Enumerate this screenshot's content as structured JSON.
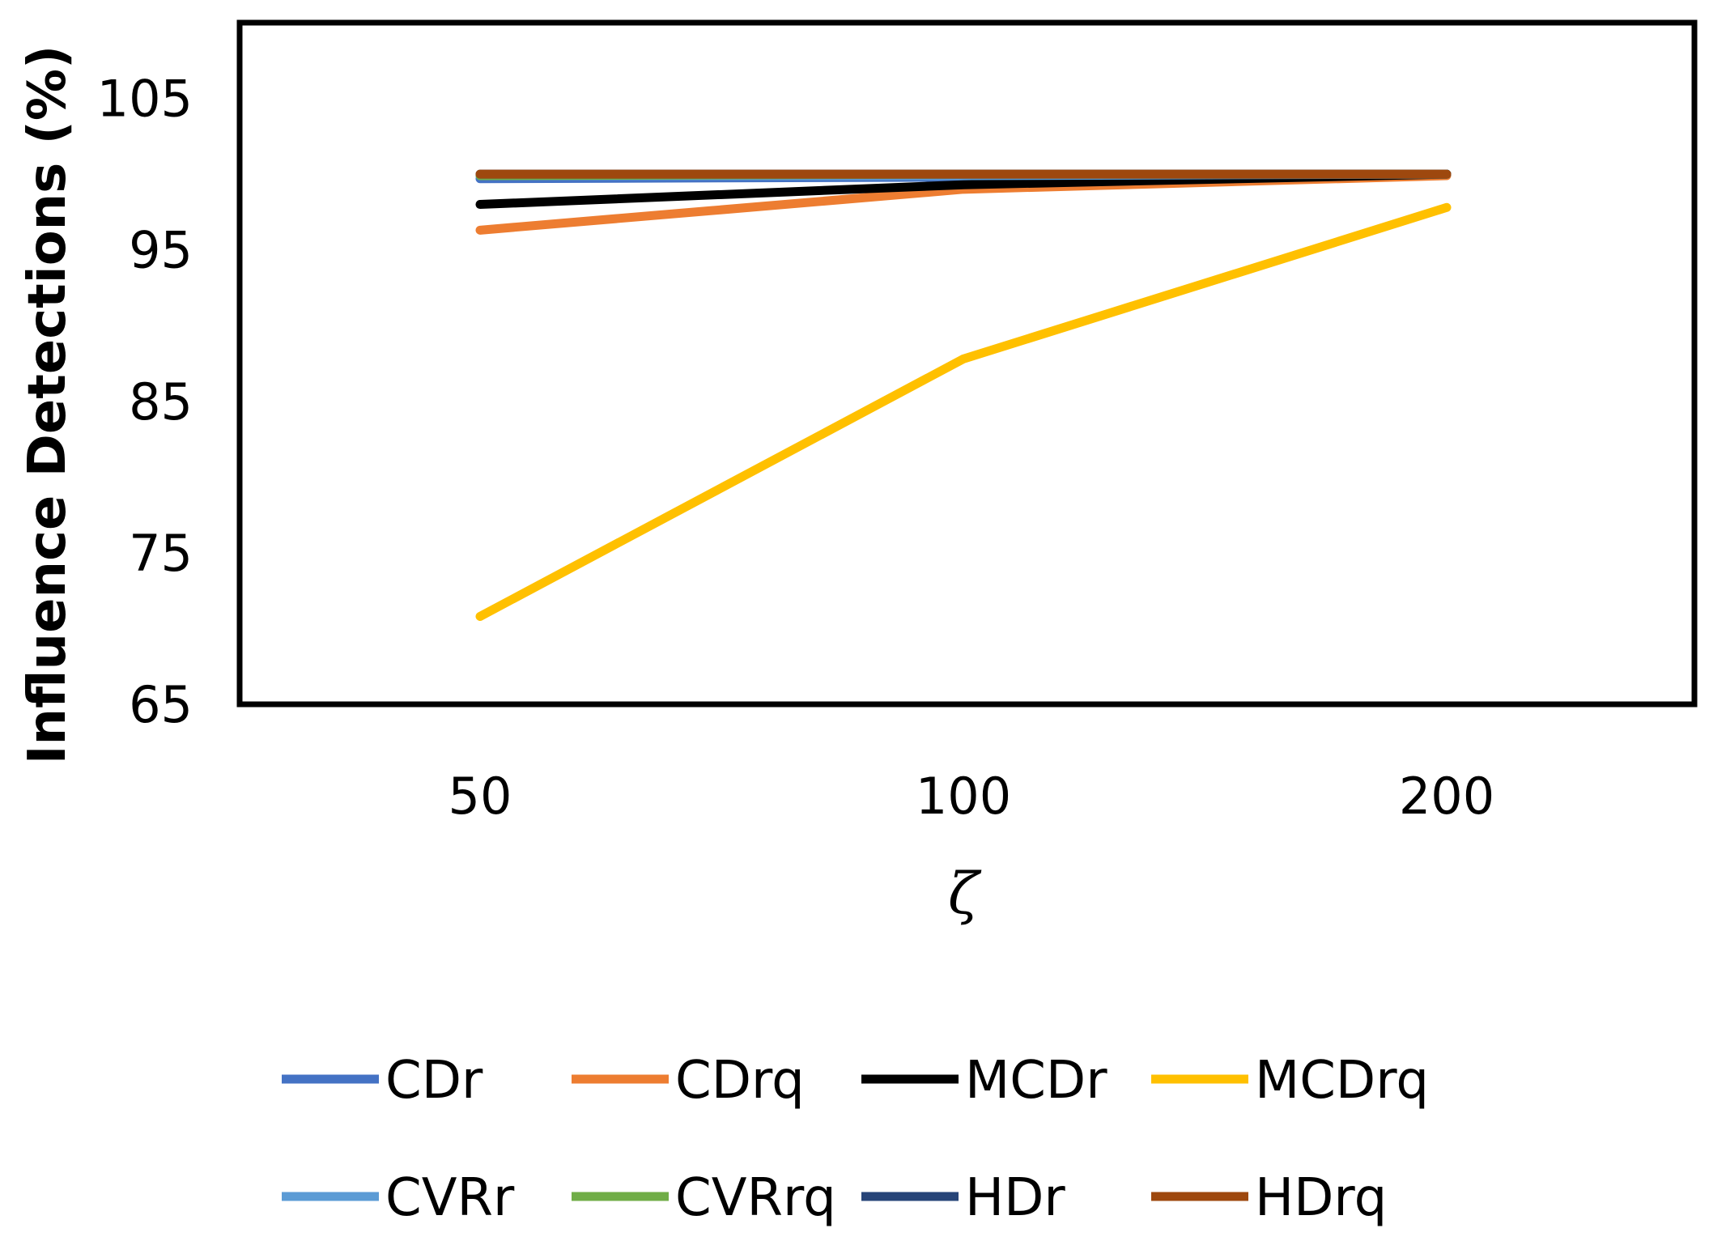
{
  "chart_data": {
    "type": "line",
    "title": "",
    "xlabel": "ζ",
    "ylabel": "Influence Detections (%)",
    "categories": [
      "50",
      "100",
      "200"
    ],
    "ylim": [
      65,
      110
    ],
    "yticks": [
      65,
      75,
      85,
      95,
      105
    ],
    "grid": false,
    "legend_position": "bottom",
    "series": [
      {
        "name": "CDr",
        "color": "#4472C4",
        "values": [
          99.7,
          99.8,
          100
        ]
      },
      {
        "name": "CDrq",
        "color": "#ED7D31",
        "values": [
          96.3,
          99.0,
          99.9
        ]
      },
      {
        "name": "MCDr",
        "color": "#000000",
        "values": [
          98.0,
          99.3,
          100
        ]
      },
      {
        "name": "MCDrq",
        "color": "#FFC000",
        "values": [
          70.8,
          87.8,
          97.8
        ]
      },
      {
        "name": "CVRr",
        "color": "#5B9BD5",
        "values": [
          99.9,
          99.9,
          100
        ]
      },
      {
        "name": "CVRrq",
        "color": "#70AD47",
        "values": [
          99.9,
          100,
          100
        ]
      },
      {
        "name": "HDr",
        "color": "#264478",
        "values": [
          100,
          100,
          100
        ]
      },
      {
        "name": "HDrq",
        "color": "#9E480E",
        "values": [
          100,
          100,
          100
        ]
      }
    ]
  }
}
